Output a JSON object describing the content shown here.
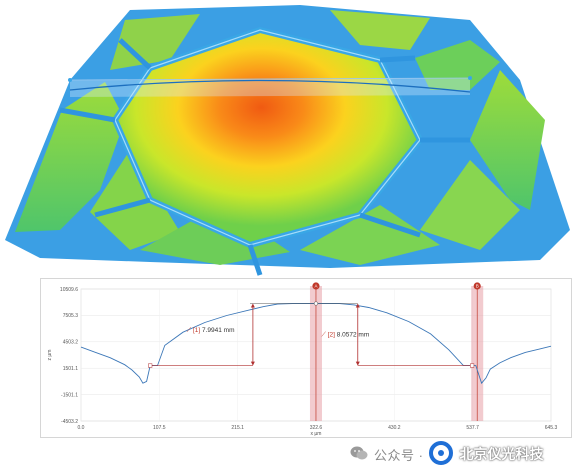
{
  "chart_data": {
    "type": "line",
    "xlabel": "x µm",
    "ylabel": "z µm",
    "x_ticks": [
      "0.0",
      "107.5",
      "215.1",
      "322.6",
      "430.2",
      "537.7",
      "645.3"
    ],
    "y_ticks": [
      "10509.6",
      "7505.3",
      "4503.2",
      "1501.1",
      "-1501.1",
      "-4503.2"
    ],
    "xlim": [
      0,
      645.3
    ],
    "ylim": [
      -4503.2,
      10509.6
    ],
    "cursor_a": {
      "label": "A",
      "x": 322.6
    },
    "cursor_b": {
      "label": "B",
      "x": 544.0
    },
    "measurements": [
      {
        "id": "[1]",
        "value": "7.9941 mm"
      },
      {
        "id": "[2]",
        "value": "8.0572 mm"
      }
    ],
    "series": [
      {
        "x": [
          0,
          20,
          40,
          60,
          70,
          80,
          85,
          90,
          95,
          100,
          105,
          115,
          140,
          170,
          200,
          230,
          250,
          270,
          290,
          310,
          335,
          355,
          375,
          395,
          420,
          450,
          480,
          505,
          525,
          535,
          542,
          550,
          556,
          562,
          575,
          590,
          610,
          630,
          645.3
        ],
        "y": [
          3900,
          3300,
          2700,
          1900,
          1300,
          500,
          -200,
          0,
          1800,
          1800,
          1800,
          4100,
          5600,
          6700,
          7500,
          8100,
          8500,
          8800,
          8860,
          8860,
          8860,
          8860,
          8700,
          8400,
          7800,
          6800,
          5400,
          3600,
          1800,
          1800,
          1800,
          -200,
          400,
          1400,
          2100,
          2700,
          3300,
          3700,
          4000
        ]
      }
    ]
  },
  "watermark": {
    "prefix": "公众号 ·",
    "brand": "北京仪光科技"
  }
}
